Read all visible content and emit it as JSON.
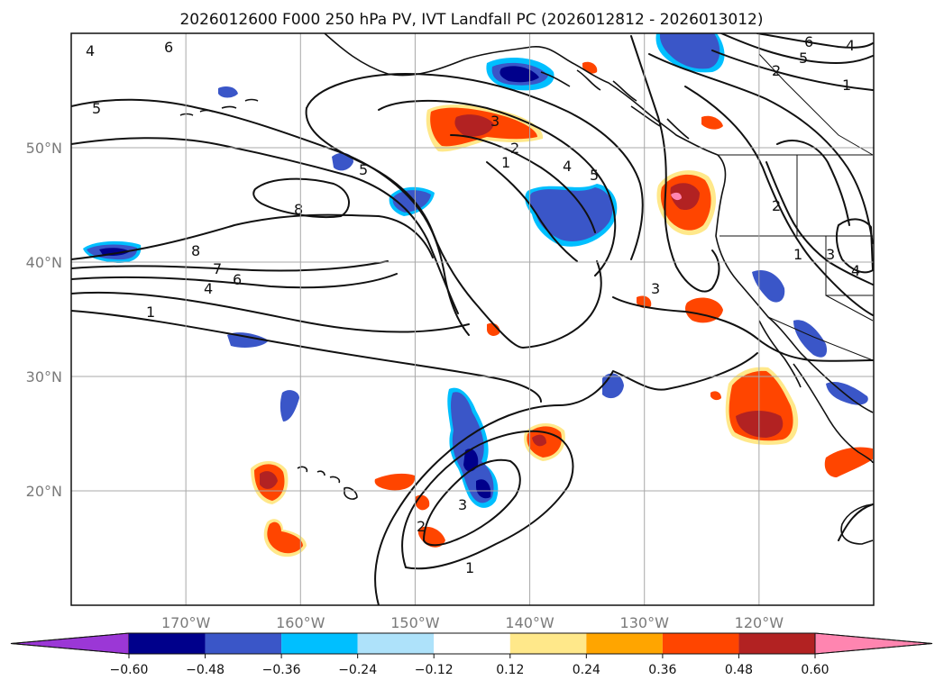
{
  "title": "2026012600 F000 250 hPa PV, IVT Landfall PC (2026012812 - 2026013012)",
  "map": {
    "lon_range": [
      -180,
      -110
    ],
    "lat_range": [
      10,
      60
    ],
    "lon_ticks": [
      "170°W",
      "160°W",
      "150°W",
      "140°W",
      "130°W",
      "120°W"
    ],
    "lat_ticks": [
      "50°N",
      "40°N",
      "30°N",
      "20°N"
    ],
    "contour_labels": [
      "4",
      "6",
      "5",
      "8",
      "8",
      "7",
      "6",
      "4",
      "1",
      "5",
      "3",
      "2",
      "1",
      "4",
      "5",
      "3",
      "2",
      "1",
      "3",
      "4",
      "2",
      "1",
      "6",
      "5",
      "2",
      "3",
      "4",
      "1"
    ]
  },
  "colorbar": {
    "tick_labels": [
      "−0.60",
      "−0.48",
      "−0.36",
      "−0.24",
      "−0.12",
      "0.12",
      "0.24",
      "0.36",
      "0.48",
      "0.60"
    ],
    "colors": [
      "#9b37d6",
      "#00008b",
      "#3a56c8",
      "#00bfff",
      "#aee2fa",
      "#ffffff",
      "#ffe88a",
      "#ffa500",
      "#ff4500",
      "#b22222",
      "#ff85b0"
    ]
  }
}
